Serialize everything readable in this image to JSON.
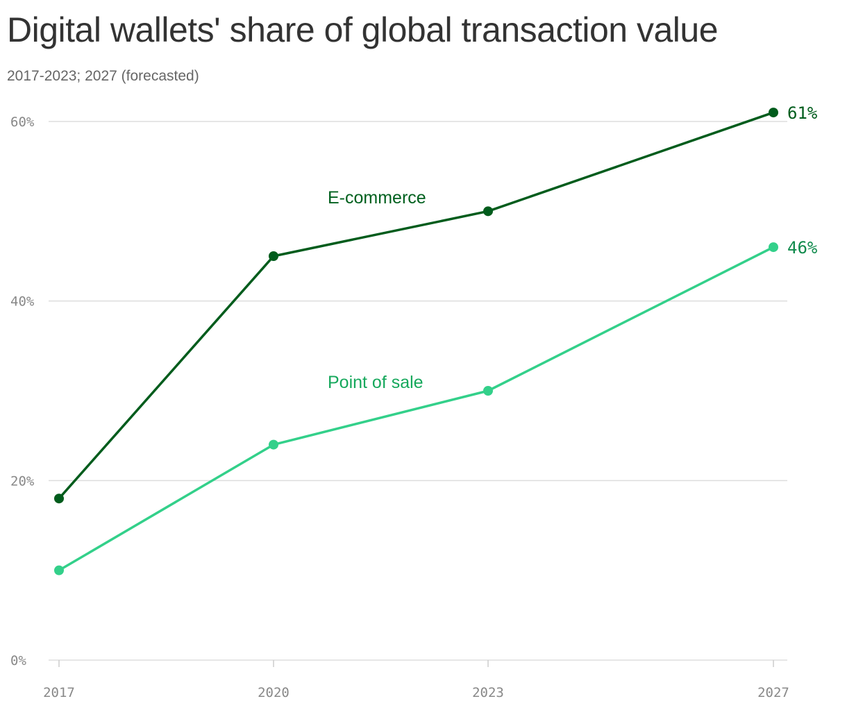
{
  "title": "Digital wallets' share of global transaction value",
  "subtitle": "2017-2023; 2027 (forecasted)",
  "colors": {
    "ecommerce": "#005c1c",
    "ecommerce_label": "#00601e",
    "pos": "#33d08a",
    "pos_label": "#16a85c",
    "pos_end_label": "#0f8a4c",
    "grid": "#dddddd",
    "tick": "#888888"
  },
  "chart_data": {
    "type": "line",
    "title": "Digital wallets' share of global transaction value",
    "subtitle": "2017-2023; 2027 (forecasted)",
    "x": [
      2017,
      2020,
      2023,
      2027
    ],
    "x_tick_labels": [
      "2017",
      "2020",
      "2023",
      "2027"
    ],
    "ylim": [
      0,
      60
    ],
    "y_ticks": [
      0,
      20,
      40,
      60
    ],
    "y_tick_labels": [
      "0%",
      "20%",
      "40%",
      "60%"
    ],
    "grid": true,
    "legend": "inline labels",
    "series": [
      {
        "name": "E-commerce",
        "values": [
          18,
          45,
          50,
          61
        ],
        "end_label": "61%"
      },
      {
        "name": "Point of sale",
        "values": [
          10,
          24,
          30,
          46
        ],
        "end_label": "46%"
      }
    ]
  }
}
